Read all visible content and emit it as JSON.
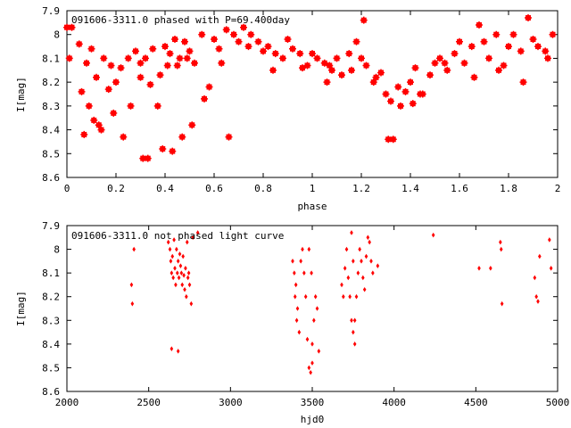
{
  "colors": {
    "marker": "#ff0000",
    "axis": "#000000",
    "background": "#ffffff"
  },
  "chart_data": [
    {
      "type": "scatter",
      "title": "091606-3311.0 phased with P=69.400day",
      "xlabel": "phase",
      "ylabel": "I[mag]",
      "xlim": [
        0,
        2
      ],
      "ylim": [
        8.6,
        7.9
      ],
      "y_inverted": true,
      "grid": false,
      "marker": "star",
      "xticks": [
        "0",
        "0.2",
        "0.4",
        "0.6",
        "0.8",
        "1",
        "1.2",
        "1.4",
        "1.6",
        "1.8",
        "2"
      ],
      "yticks": [
        "7.9",
        "8",
        "8.1",
        "8.2",
        "8.3",
        "8.4",
        "8.5",
        "8.6"
      ],
      "series": [
        {
          "x": [
            0.0,
            0.01,
            0.02,
            0.05,
            0.06,
            0.08,
            0.1,
            0.12,
            0.13,
            0.15,
            0.17,
            0.18,
            0.2,
            0.22,
            0.25,
            0.28,
            0.3,
            0.32,
            0.35,
            0.38,
            0.4,
            0.42,
            0.44,
            0.46,
            0.48,
            0.5,
            0.52,
            0.55,
            0.58,
            0.6,
            0.62,
            0.65,
            0.68,
            0.7,
            0.72,
            0.75,
            0.78,
            0.8,
            0.82,
            0.85,
            0.88,
            0.9,
            0.92,
            0.95,
            0.98,
            1.0,
            1.02,
            1.05,
            1.08,
            1.1,
            1.12,
            1.15,
            1.18,
            1.2,
            1.22,
            1.25,
            1.28,
            1.3,
            1.32,
            1.35,
            1.38,
            1.4,
            1.42,
            1.45,
            1.48,
            1.5,
            1.52,
            1.55,
            1.58,
            1.6,
            1.62,
            1.65,
            1.68,
            1.7,
            1.72,
            1.75,
            1.78,
            1.8,
            1.82,
            1.85,
            1.88,
            1.9,
            1.92,
            1.95,
            1.98,
            0.07,
            0.09,
            0.11,
            0.14,
            0.19,
            0.23,
            0.26,
            0.31,
            0.33,
            0.37,
            0.39,
            0.43,
            0.47,
            0.51,
            0.66,
            1.07,
            1.31,
            1.33,
            1.36,
            1.41,
            0.3,
            0.34,
            0.41,
            0.45,
            0.49,
            0.56,
            0.63,
            0.74,
            0.84,
            0.96,
            1.06,
            1.16,
            1.26,
            1.44,
            1.54,
            1.66,
            1.76,
            1.86,
            1.96,
            1.21
          ],
          "y": [
            7.97,
            8.1,
            7.97,
            8.04,
            8.24,
            8.12,
            8.06,
            8.18,
            8.38,
            8.1,
            8.23,
            8.13,
            8.2,
            8.14,
            8.1,
            8.07,
            8.12,
            8.1,
            8.06,
            8.17,
            8.05,
            8.08,
            8.02,
            8.1,
            8.03,
            8.07,
            8.12,
            8.0,
            8.22,
            8.02,
            8.06,
            7.98,
            8.0,
            8.03,
            7.97,
            8.0,
            8.03,
            8.07,
            8.05,
            8.08,
            8.1,
            8.02,
            8.06,
            8.08,
            8.13,
            8.08,
            8.1,
            8.12,
            8.15,
            8.1,
            8.17,
            8.08,
            8.03,
            8.1,
            8.13,
            8.2,
            8.16,
            8.25,
            8.28,
            8.22,
            8.24,
            8.2,
            8.14,
            8.25,
            8.17,
            8.12,
            8.1,
            8.15,
            8.08,
            8.03,
            8.12,
            8.05,
            7.96,
            8.03,
            8.1,
            8.0,
            8.13,
            8.05,
            8.0,
            8.07,
            7.93,
            8.02,
            8.05,
            8.07,
            8.0,
            8.42,
            8.3,
            8.36,
            8.4,
            8.33,
            8.43,
            8.3,
            8.52,
            8.52,
            8.3,
            8.48,
            8.49,
            8.43,
            8.38,
            8.43,
            8.13,
            8.44,
            8.44,
            8.3,
            8.29,
            8.18,
            8.21,
            8.13,
            8.13,
            8.1,
            8.27,
            8.12,
            8.05,
            8.15,
            8.14,
            8.2,
            8.15,
            8.18,
            8.25,
            8.12,
            8.18,
            8.15,
            8.2,
            8.1,
            7.94
          ]
        }
      ]
    },
    {
      "type": "scatter",
      "title": "091606-3311.0 not phased light curve",
      "xlabel": "hjd0",
      "ylabel": "I[mag]",
      "xlim": [
        2000,
        5000
      ],
      "ylim": [
        8.6,
        7.9
      ],
      "y_inverted": true,
      "grid": false,
      "marker": "diamond",
      "xticks": [
        "2000",
        "2500",
        "3000",
        "3500",
        "4000",
        "4500",
        "5000"
      ],
      "yticks": [
        "7.9",
        "8",
        "8.1",
        "8.2",
        "8.3",
        "8.4",
        "8.5",
        "8.6"
      ],
      "series": [
        {
          "x": [
            2395,
            2400,
            2410,
            2620,
            2630,
            2635,
            2640,
            2645,
            2650,
            2655,
            2660,
            2665,
            2670,
            2675,
            2680,
            2685,
            2690,
            2695,
            2700,
            2705,
            2710,
            2715,
            2720,
            2725,
            2730,
            2735,
            2740,
            2745,
            2750,
            2760,
            2770,
            2800,
            2640,
            2680,
            3380,
            3390,
            3395,
            3400,
            3405,
            3410,
            3420,
            3430,
            3440,
            3450,
            3460,
            3470,
            3480,
            3490,
            3500,
            3510,
            3520,
            3530,
            3540,
            3500,
            3495,
            3480,
            3680,
            3690,
            3700,
            3710,
            3720,
            3730,
            3740,
            3750,
            3760,
            3770,
            3780,
            3790,
            3800,
            3810,
            3820,
            3830,
            3840,
            3850,
            3860,
            3870,
            3900,
            3740,
            3750,
            3760,
            4240,
            4520,
            4590,
            4650,
            4655,
            4660,
            4860,
            4870,
            4880,
            4890,
            4950,
            4960
          ],
          "y": [
            8.15,
            8.23,
            8.0,
            7.97,
            8.0,
            8.05,
            8.1,
            8.03,
            8.12,
            7.96,
            8.08,
            8.15,
            8.0,
            8.1,
            8.05,
            8.12,
            8.02,
            8.07,
            8.1,
            8.15,
            8.03,
            8.11,
            8.17,
            8.08,
            8.2,
            7.97,
            8.12,
            8.1,
            8.15,
            8.23,
            7.95,
            7.93,
            8.42,
            8.43,
            8.05,
            8.1,
            8.2,
            8.15,
            8.3,
            8.25,
            8.35,
            8.05,
            8.0,
            8.1,
            8.2,
            8.38,
            8.5,
            8.52,
            8.48,
            8.3,
            8.2,
            8.25,
            8.43,
            8.4,
            8.1,
            8.0,
            8.15,
            8.2,
            8.08,
            8.0,
            8.12,
            8.2,
            7.93,
            8.05,
            8.3,
            8.2,
            8.1,
            8.0,
            8.05,
            8.12,
            8.17,
            8.03,
            7.95,
            7.97,
            8.05,
            8.1,
            8.07,
            8.3,
            8.35,
            8.4,
            7.94,
            8.08,
            8.08,
            7.97,
            8.0,
            8.23,
            8.12,
            8.2,
            8.22,
            8.03,
            7.96,
            8.08
          ]
        }
      ]
    }
  ]
}
